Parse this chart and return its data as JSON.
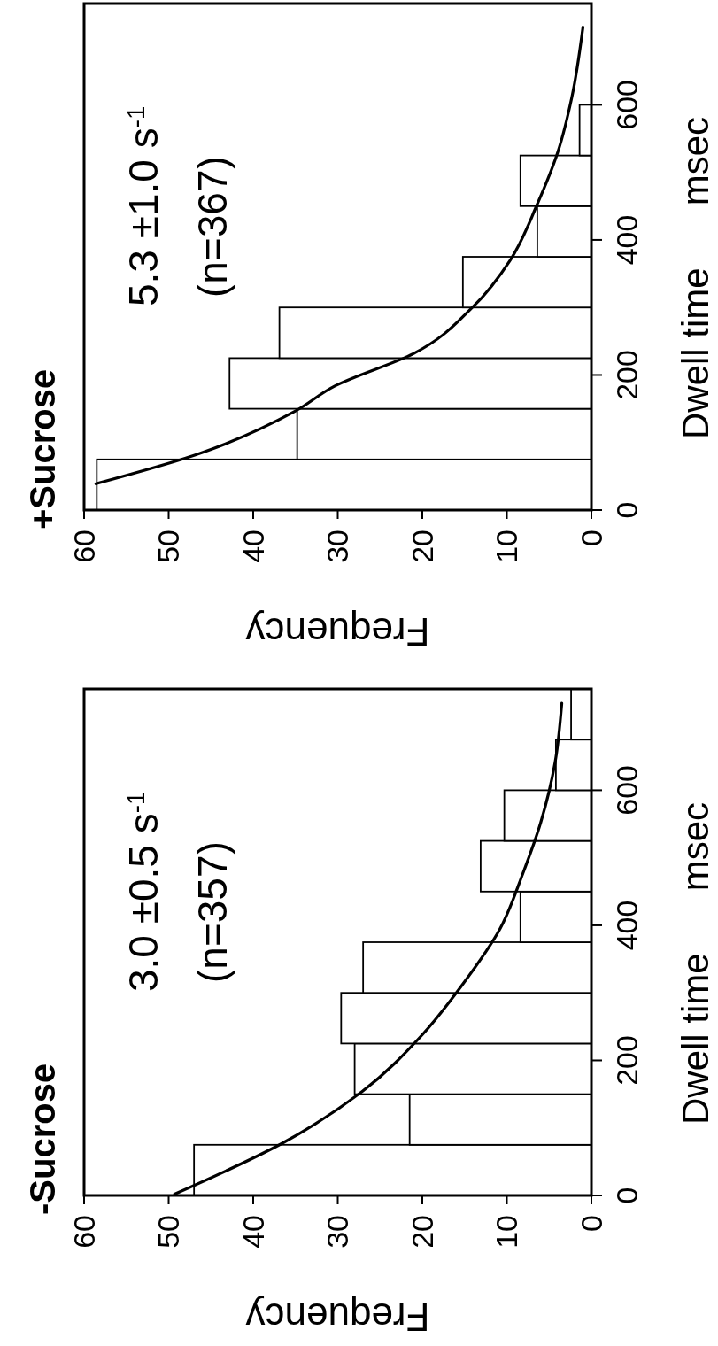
{
  "chart_data": [
    {
      "type": "histogram",
      "orientation": "horizontal",
      "title": "-Sucrose",
      "xlabel": "Frequency",
      "ylabel": "Dwell time      msec",
      "annotations": [
        "3.0 ±0.5 s$^{-1}$",
        "(n=357)"
      ],
      "bins": [
        0,
        75,
        150,
        225,
        300,
        375,
        450,
        525,
        600,
        675,
        750
      ],
      "series": [
        {
          "color": "#ffffff",
          "values": [
            47,
            21.5,
            28,
            29.6,
            27,
            8.4,
            13.1,
            10.3,
            4.2,
            2.4
          ]
        },
        {
          "type": "line",
          "color": "#000000",
          "x": [
            2,
            77,
            154,
            238,
            313,
            395,
            477,
            552,
            641,
            729
          ],
          "values": [
            49.3,
            36.6,
            27.1,
            20,
            15.2,
            10.8,
            8.1,
            6,
            4.3,
            3.5
          ]
        }
      ],
      "xlim": [
        60,
        0
      ],
      "xticks": [
        60,
        50,
        40,
        30,
        20,
        10,
        0
      ],
      "ylim": [
        0,
        750
      ],
      "yticks": [
        0,
        200,
        400,
        600
      ]
    },
    {
      "type": "histogram",
      "orientation": "horizontal",
      "title": "+Sucrose",
      "xlabel": "Frequency",
      "ylabel": "Dwell time      msec",
      "annotations": [
        "5.3 ±1.0 s$^{-1}$",
        "(n=367)"
      ],
      "bins": [
        0,
        75,
        150,
        225,
        300,
        375,
        450,
        525,
        600
      ],
      "series": [
        {
          "color": "#ffffff",
          "values": [
            58.5,
            34.8,
            42.8,
            36.9,
            15.2,
            6.4,
            8.4,
            1.4
          ]
        },
        {
          "type": "line",
          "color": "#000000",
          "x": [
            39,
            81,
            146,
            184,
            232,
            301,
            370,
            453,
            529,
            612,
            715
          ],
          "values": [
            58.6,
            47,
            35.1,
            30.3,
            21,
            14,
            9.6,
            6.4,
            4,
            2.3,
            1
          ]
        }
      ],
      "xlim": [
        60,
        0
      ],
      "xticks": [
        60,
        50,
        40,
        30,
        20,
        10,
        0
      ],
      "ylim": [
        0,
        750
      ],
      "yticks": [
        0,
        200,
        400,
        600
      ]
    }
  ]
}
